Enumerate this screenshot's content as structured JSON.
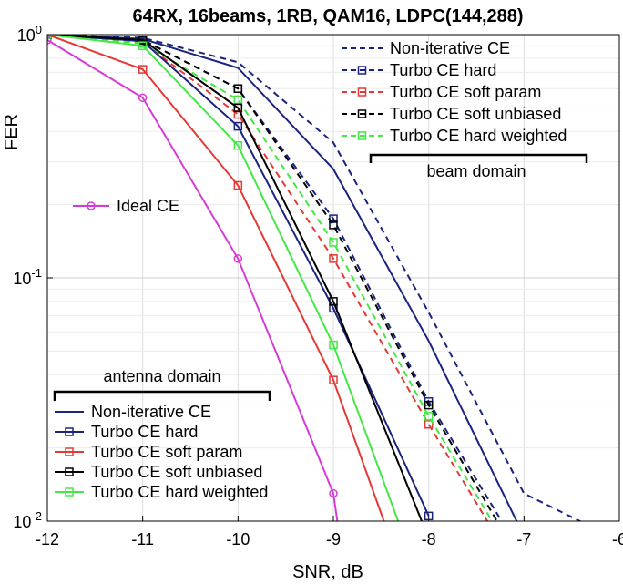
{
  "chart_data": {
    "type": "line",
    "title": "64RX, 16beams, 1RB, QAM16, LDPC(144,288)",
    "xlabel": "SNR, dB",
    "ylabel": "FER",
    "xlim": [
      -12,
      -6
    ],
    "ylim": [
      0.01,
      1
    ],
    "yscale": "log",
    "grid": true,
    "x_ticks": [
      "-12",
      "-11",
      "-10",
      "-9",
      "-8",
      "-7",
      "-6"
    ],
    "y_tick_base": "10",
    "y_ticks": [
      {
        "value": 1,
        "exp": "0"
      },
      {
        "value": 0.1,
        "exp": "-1"
      },
      {
        "value": 0.01,
        "exp": "-2"
      }
    ],
    "annotations": {
      "beam_domain": "beam domain",
      "antenna_domain": "antenna domain"
    },
    "series": [
      {
        "name": "Non-iterative CE",
        "group": "beam",
        "color": "#1a237e",
        "style": "dashed",
        "marker": "none",
        "points": [
          [
            -12,
            1.0
          ],
          [
            -11,
            0.97
          ],
          [
            -10,
            0.77
          ],
          [
            -9,
            0.36
          ],
          [
            -8,
            0.072
          ],
          [
            -7,
            0.013
          ],
          [
            -6.3,
            0.0095
          ]
        ]
      },
      {
        "name": "Turbo CE hard",
        "group": "beam",
        "color": "#1a237e",
        "style": "dashed",
        "marker": "square",
        "points": [
          [
            -12,
            1.0
          ],
          [
            -11,
            0.95
          ],
          [
            -10,
            0.6
          ],
          [
            -9,
            0.175
          ],
          [
            -8,
            0.031
          ],
          [
            -7.2,
            0.0095
          ]
        ]
      },
      {
        "name": "Turbo CE soft param",
        "group": "beam",
        "color": "#e53935",
        "style": "dashed",
        "marker": "square",
        "points": [
          [
            -12,
            1.0
          ],
          [
            -11,
            0.93
          ],
          [
            -10,
            0.47
          ],
          [
            -9,
            0.12
          ],
          [
            -8,
            0.025
          ],
          [
            -7.35,
            0.0095
          ]
        ]
      },
      {
        "name": "Turbo CE soft unbiased",
        "group": "beam",
        "color": "#000000",
        "style": "dashed",
        "marker": "square",
        "points": [
          [
            -12,
            1.0
          ],
          [
            -11,
            0.95
          ],
          [
            -10,
            0.6
          ],
          [
            -9,
            0.165
          ],
          [
            -8,
            0.03
          ],
          [
            -7.25,
            0.0095
          ]
        ]
      },
      {
        "name": "Turbo CE hard weighted",
        "group": "beam",
        "color": "#44e844",
        "style": "dashed",
        "marker": "square",
        "points": [
          [
            -12,
            1.0
          ],
          [
            -11,
            0.92
          ],
          [
            -10,
            0.54
          ],
          [
            -9,
            0.14
          ],
          [
            -8,
            0.027
          ],
          [
            -7.3,
            0.0095
          ]
        ]
      },
      {
        "name": "Ideal CE",
        "group": "ideal",
        "color": "#d63bd6",
        "style": "solid",
        "marker": "circle",
        "points": [
          [
            -12,
            0.95
          ],
          [
            -11,
            0.55
          ],
          [
            -10,
            0.12
          ],
          [
            -9,
            0.013
          ],
          [
            -8.95,
            0.0095
          ]
        ]
      },
      {
        "name": "Non-iterative CE",
        "group": "antenna",
        "color": "#1a237e",
        "style": "solid",
        "marker": "none",
        "points": [
          [
            -12,
            1.0
          ],
          [
            -11,
            0.96
          ],
          [
            -10,
            0.73
          ],
          [
            -9,
            0.28
          ],
          [
            -8,
            0.055
          ],
          [
            -7.05,
            0.0095
          ]
        ]
      },
      {
        "name": "Turbo CE hard",
        "group": "antenna",
        "color": "#1a237e",
        "style": "solid",
        "marker": "square",
        "points": [
          [
            -12,
            1.0
          ],
          [
            -11,
            0.94
          ],
          [
            -10,
            0.42
          ],
          [
            -9,
            0.075
          ],
          [
            -8,
            0.0105
          ]
        ]
      },
      {
        "name": "Turbo CE soft param",
        "group": "antenna",
        "color": "#e53935",
        "style": "solid",
        "marker": "square",
        "points": [
          [
            -12,
            1.0
          ],
          [
            -11,
            0.72
          ],
          [
            -10,
            0.24
          ],
          [
            -9,
            0.038
          ],
          [
            -8.45,
            0.0095
          ]
        ]
      },
      {
        "name": "Turbo CE soft unbiased",
        "group": "antenna",
        "color": "#000000",
        "style": "solid",
        "marker": "square",
        "points": [
          [
            -12,
            1.0
          ],
          [
            -11,
            0.95
          ],
          [
            -10,
            0.5
          ],
          [
            -9,
            0.08
          ],
          [
            -8.05,
            0.0095
          ]
        ]
      },
      {
        "name": "Turbo CE hard weighted",
        "group": "antenna",
        "color": "#44e844",
        "style": "solid",
        "marker": "square",
        "points": [
          [
            -12,
            1.0
          ],
          [
            -11,
            0.9
          ],
          [
            -10,
            0.35
          ],
          [
            -9,
            0.053
          ],
          [
            -8.3,
            0.0095
          ]
        ]
      }
    ]
  }
}
